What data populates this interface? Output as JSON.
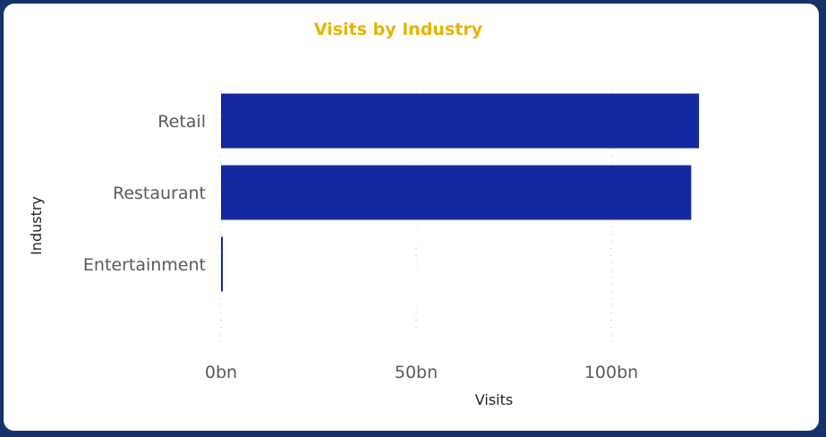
{
  "chart_data": {
    "type": "bar",
    "orientation": "horizontal",
    "title": "Visits by Industry",
    "xlabel": "Visits",
    "ylabel": "Industry",
    "categories": [
      "Retail",
      "Restaurant",
      "Entertainment"
    ],
    "values": [
      122.5,
      120.5,
      0.4
    ],
    "unit_suffix": "bn",
    "xticks": [
      {
        "value": 0,
        "label": "0bn"
      },
      {
        "value": 50,
        "label": "50bn"
      },
      {
        "value": 100,
        "label": "100bn"
      }
    ],
    "xlim": [
      0,
      125
    ],
    "grid": true,
    "legend": "none",
    "colors": {
      "bar": "#1428a0",
      "title": "#e6b400",
      "background": "#16326a",
      "card": "#ffffff",
      "grid": "#c8c8c8"
    }
  }
}
